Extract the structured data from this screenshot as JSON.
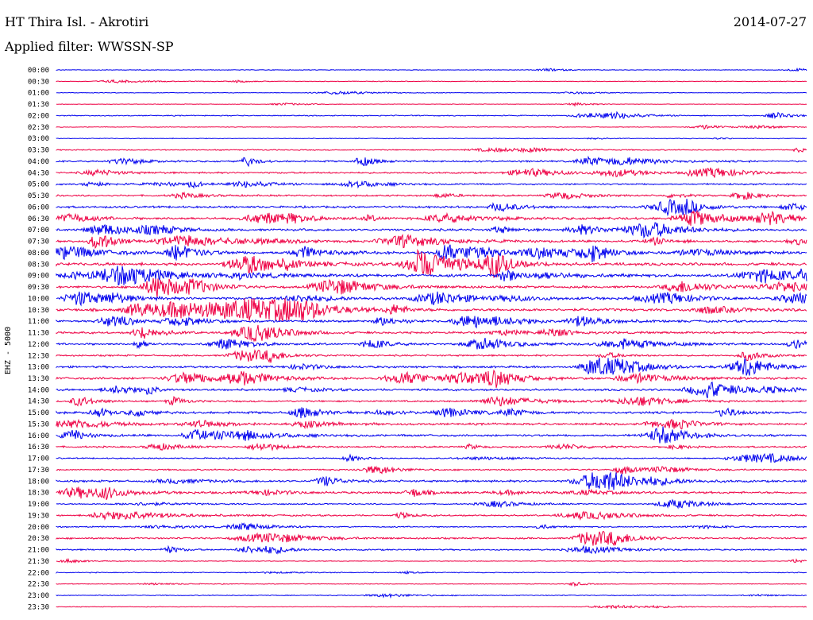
{
  "header": {
    "station": "HT Thira Isl. - Akrotiri",
    "date": "2014-07-27",
    "filter": "Applied filter: WWSSN-SP",
    "channel": "EHZ - 5000"
  },
  "colors": {
    "blue": "#0000ee",
    "red": "#ee0044"
  },
  "chart_data": {
    "type": "line",
    "title": "HT Thira Isl. - Akrotiri",
    "ylabel": "EHZ - 5000",
    "ylim": [
      "00:00",
      "23:30"
    ],
    "grid": false,
    "series": [
      {
        "label": "00:00",
        "color": "#0000ee",
        "amp": 0.6
      },
      {
        "label": "00:30",
        "color": "#ee0044",
        "amp": 0.7
      },
      {
        "label": "01:00",
        "color": "#0000ee",
        "amp": 0.6
      },
      {
        "label": "01:30",
        "color": "#ee0044",
        "amp": 0.5
      },
      {
        "label": "02:00",
        "color": "#0000ee",
        "amp": 1.0
      },
      {
        "label": "02:30",
        "color": "#ee0044",
        "amp": 0.7
      },
      {
        "label": "03:00",
        "color": "#0000ee",
        "amp": 0.7
      },
      {
        "label": "03:30",
        "color": "#ee0044",
        "amp": 1.0
      },
      {
        "label": "04:00",
        "color": "#0000ee",
        "amp": 1.6
      },
      {
        "label": "04:30",
        "color": "#ee0044",
        "amp": 1.6
      },
      {
        "label": "05:00",
        "color": "#0000ee",
        "amp": 1.5
      },
      {
        "label": "05:30",
        "color": "#ee0044",
        "amp": 1.6
      },
      {
        "label": "06:00",
        "color": "#0000ee",
        "amp": 2.0
      },
      {
        "label": "06:30",
        "color": "#ee0044",
        "amp": 2.4
      },
      {
        "label": "07:00",
        "color": "#0000ee",
        "amp": 2.2
      },
      {
        "label": "07:30",
        "color": "#ee0044",
        "amp": 2.2
      },
      {
        "label": "08:00",
        "color": "#0000ee",
        "amp": 2.8
      },
      {
        "label": "08:30",
        "color": "#ee0044",
        "amp": 2.8
      },
      {
        "label": "09:00",
        "color": "#0000ee",
        "amp": 2.8
      },
      {
        "label": "09:30",
        "color": "#ee0044",
        "amp": 2.2
      },
      {
        "label": "10:00",
        "color": "#0000ee",
        "amp": 2.6
      },
      {
        "label": "10:30",
        "color": "#ee0044",
        "amp": 2.6
      },
      {
        "label": "11:00",
        "color": "#0000ee",
        "amp": 2.2
      },
      {
        "label": "11:30",
        "color": "#ee0044",
        "amp": 2.0
      },
      {
        "label": "12:00",
        "color": "#0000ee",
        "amp": 2.0
      },
      {
        "label": "12:30",
        "color": "#ee0044",
        "amp": 1.6
      },
      {
        "label": "13:00",
        "color": "#0000ee",
        "amp": 2.0
      },
      {
        "label": "13:30",
        "color": "#ee0044",
        "amp": 2.2
      },
      {
        "label": "14:00",
        "color": "#0000ee",
        "amp": 2.0
      },
      {
        "label": "14:30",
        "color": "#ee0044",
        "amp": 1.6
      },
      {
        "label": "15:00",
        "color": "#0000ee",
        "amp": 2.2
      },
      {
        "label": "15:30",
        "color": "#ee0044",
        "amp": 2.0
      },
      {
        "label": "16:00",
        "color": "#0000ee",
        "amp": 2.0
      },
      {
        "label": "16:30",
        "color": "#ee0044",
        "amp": 1.6
      },
      {
        "label": "17:00",
        "color": "#0000ee",
        "amp": 1.2
      },
      {
        "label": "17:30",
        "color": "#ee0044",
        "amp": 1.4
      },
      {
        "label": "18:00",
        "color": "#0000ee",
        "amp": 2.0
      },
      {
        "label": "18:30",
        "color": "#ee0044",
        "amp": 2.0
      },
      {
        "label": "19:00",
        "color": "#0000ee",
        "amp": 1.2
      },
      {
        "label": "19:30",
        "color": "#ee0044",
        "amp": 1.6
      },
      {
        "label": "20:00",
        "color": "#0000ee",
        "amp": 1.2
      },
      {
        "label": "20:30",
        "color": "#ee0044",
        "amp": 1.6
      },
      {
        "label": "21:00",
        "color": "#0000ee",
        "amp": 1.4
      },
      {
        "label": "21:30",
        "color": "#ee0044",
        "amp": 0.7
      },
      {
        "label": "22:00",
        "color": "#0000ee",
        "amp": 0.8
      },
      {
        "label": "22:30",
        "color": "#ee0044",
        "amp": 0.7
      },
      {
        "label": "23:00",
        "color": "#0000ee",
        "amp": 0.8
      },
      {
        "label": "23:30",
        "color": "#ee0044",
        "amp": 0.6
      }
    ]
  }
}
